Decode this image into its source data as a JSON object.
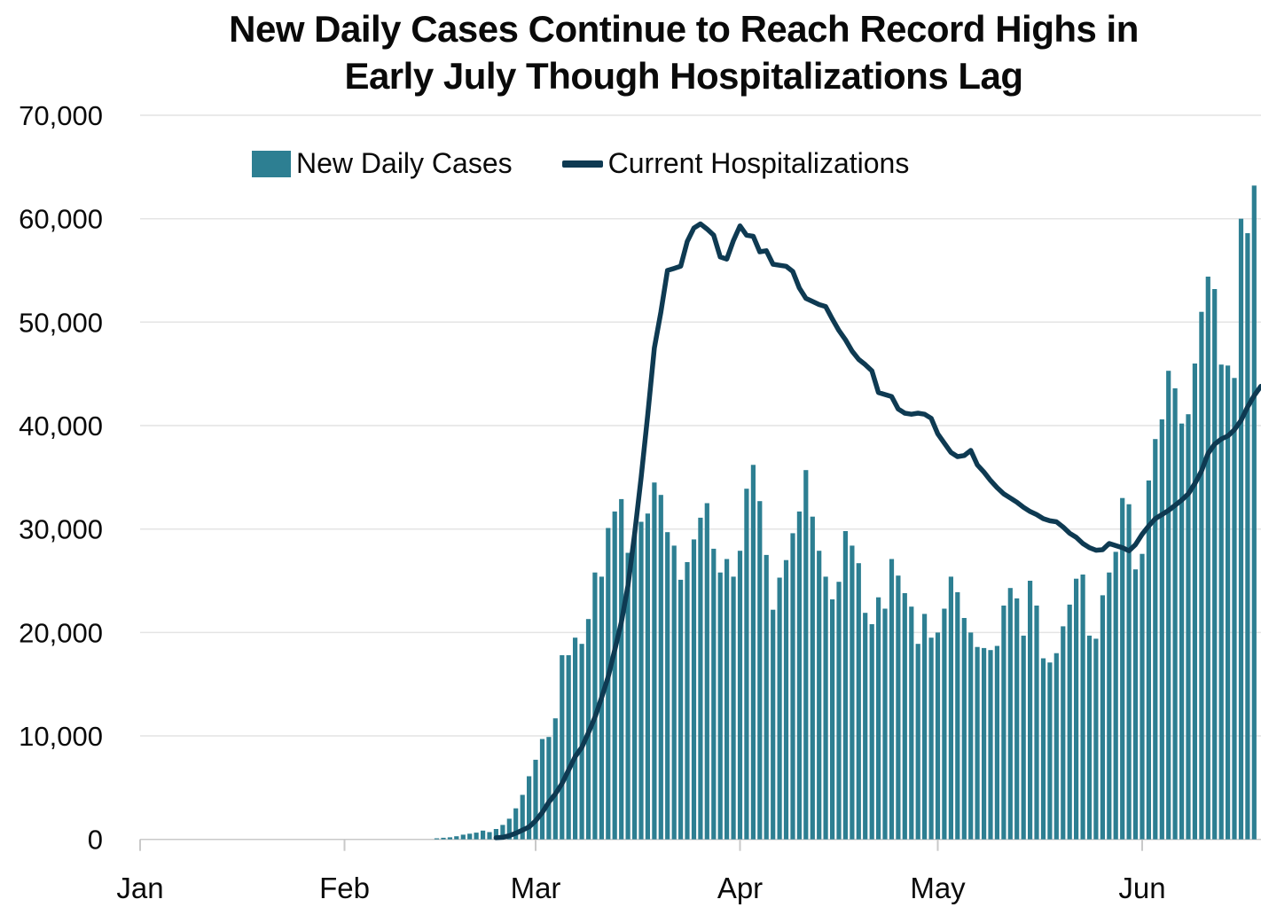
{
  "title": {
    "line1": "New Daily Cases Continue to Reach Record Highs in",
    "line2": "Early July Though Hospitalizations Lag"
  },
  "legend": {
    "items": [
      {
        "label": "New Daily Cases",
        "marker": "square",
        "color": "#2d7f92"
      },
      {
        "label": "Current Hospitalizations",
        "marker": "line",
        "color": "#0e3a52"
      }
    ]
  },
  "colors": {
    "background": "#ffffff",
    "grid": "#e4e4e4",
    "axis": "#c9c9c9",
    "text": "#0a0a0a",
    "bar": "#2d7f92",
    "line": "#0e3a52"
  },
  "chart_data": {
    "type": "combo-bar-line",
    "title": "New Daily Cases Continue to Reach Record Highs in Early July Though Hospitalizations Lag",
    "xlabel": "",
    "ylabel": "",
    "grid": "horizontal",
    "legend_position": "top",
    "ylim": [
      0,
      70000
    ],
    "y_ticks": [
      0,
      10000,
      20000,
      30000,
      40000,
      50000,
      60000,
      70000
    ],
    "y_tick_labels": [
      "0",
      "10,000",
      "20,000",
      "30,000",
      "40,000",
      "50,000",
      "60,000",
      "70,000"
    ],
    "x_tick_labels": [
      "Jan",
      "Feb",
      "Mar",
      "Apr",
      "May",
      "Jun"
    ],
    "x_tick_days": [
      0,
      31,
      60,
      91,
      121,
      152
    ],
    "x_note": "day 0 = Jan tick; daily resolution; bars span late Feb through early July",
    "series": [
      {
        "name": "New Daily Cases",
        "type": "bar",
        "color": "#2d7f92",
        "day_offset": 45,
        "values": [
          100,
          150,
          200,
          300,
          450,
          550,
          650,
          850,
          700,
          1000,
          1400,
          2000,
          3000,
          4300,
          6100,
          7700,
          9700,
          9900,
          11700,
          17800,
          17800,
          19500,
          18900,
          21300,
          25800,
          25400,
          30100,
          31700,
          32900,
          27700,
          29400,
          30700,
          31500,
          34500,
          33300,
          29700,
          28400,
          25100,
          26800,
          29000,
          31100,
          32500,
          28100,
          25800,
          27100,
          25400,
          27900,
          33900,
          36200,
          32700,
          27500,
          22200,
          25300,
          27000,
          29600,
          31700,
          35700,
          31200,
          27900,
          25400,
          23200,
          24900,
          29800,
          28400,
          26700,
          21900,
          20800,
          23400,
          22300,
          27100,
          25500,
          23800,
          22500,
          18900,
          21800,
          19500,
          20000,
          22300,
          25400,
          23900,
          21400,
          20000,
          18600,
          18500,
          18300,
          18700,
          22600,
          24300,
          23300,
          19700,
          25000,
          22600,
          17500,
          17100,
          18000,
          20600,
          22700,
          25200,
          25600,
          19700,
          19400,
          23600,
          25800,
          27800,
          33000,
          32400,
          26100,
          27600,
          34700,
          38700,
          40600,
          45300,
          43600,
          40200,
          41100,
          46000,
          51000,
          54400,
          53200,
          45900,
          45800,
          44600,
          60000,
          58600,
          63200
        ]
      },
      {
        "name": "Current Hospitalizations",
        "type": "line",
        "color": "#0e3a52",
        "day_offset": 54,
        "values": [
          150,
          200,
          350,
          600,
          900,
          1200,
          1800,
          2600,
          3600,
          4400,
          5400,
          6700,
          8000,
          8900,
          10300,
          11800,
          13700,
          15700,
          18300,
          21000,
          24500,
          29500,
          35000,
          41000,
          47500,
          51000,
          55000,
          55200,
          55400,
          57800,
          59100,
          59500,
          59000,
          58400,
          56300,
          56100,
          57900,
          59300,
          58400,
          58300,
          56800,
          56900,
          55600,
          55500,
          55400,
          54900,
          53300,
          52300,
          52000,
          51700,
          51500,
          50300,
          49200,
          48300,
          47200,
          46400,
          45900,
          45300,
          43200,
          43000,
          42800,
          41600,
          41200,
          41100,
          41200,
          41100,
          40700,
          39200,
          38300,
          37400,
          37000,
          37100,
          37600,
          36200,
          35500,
          34700,
          34000,
          33400,
          33000,
          32600,
          32100,
          31700,
          31400,
          31000,
          30800,
          30700,
          30200,
          29600,
          29200,
          28600,
          28200,
          27950,
          28000,
          28600,
          28400,
          28200,
          27900,
          28500,
          29500,
          30300,
          31000,
          31400,
          31800,
          32300,
          32800,
          33400,
          34400,
          35600,
          37300,
          38200,
          38700,
          39000,
          39600,
          40500,
          41800,
          42900,
          43800
        ]
      }
    ]
  }
}
